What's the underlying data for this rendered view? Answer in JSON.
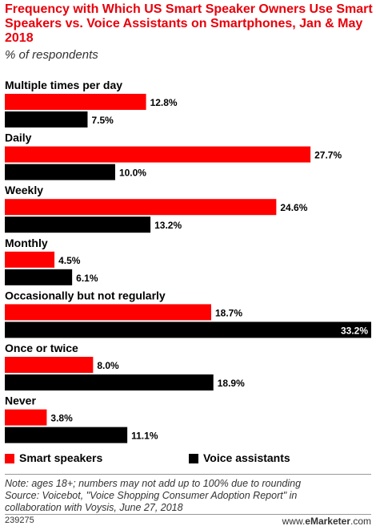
{
  "header": {
    "title": "Frequency with Which US Smart Speaker Owners Use Smart Speakers vs. Voice Assistants on Smartphones, Jan & May 2018",
    "subtitle": "% of respondents"
  },
  "chart_data": {
    "type": "bar",
    "orientation": "horizontal",
    "categories": [
      "Multiple times per day",
      "Daily",
      "Weekly",
      "Monthly",
      "Occasionally but not regularly",
      "Once or twice",
      "Never"
    ],
    "series": [
      {
        "name": "Smart speakers",
        "values": [
          12.8,
          27.7,
          24.6,
          4.5,
          18.7,
          8.0,
          3.8
        ],
        "color": "#ff0000"
      },
      {
        "name": "Voice assistants",
        "values": [
          7.5,
          10.0,
          13.2,
          6.1,
          33.2,
          18.9,
          11.1
        ],
        "color": "#000000"
      }
    ],
    "value_suffix": "%",
    "xlim": [
      0,
      33.2
    ],
    "grid": false,
    "legend_position": "bottom-left"
  },
  "legend": {
    "smart_speakers": "Smart speakers",
    "voice_assistants": "Voice assistants"
  },
  "footer": {
    "note_line1": "Note: ages 18+; numbers may not add up to 100% due to rounding",
    "note_line2": "Source: Voicebot, \"Voice Shopping Consumer Adoption Report\" in",
    "note_line3": "collaboration with Voysis, June 27, 2018",
    "chart_id": "239275",
    "brand_prefix": "www.",
    "brand_name": "eMarketer",
    "brand_suffix": ".com"
  },
  "colors": {
    "accent": "#e8000b",
    "smart_speakers": "#ff0000",
    "voice_assistants": "#000000",
    "divider": "#999999"
  }
}
